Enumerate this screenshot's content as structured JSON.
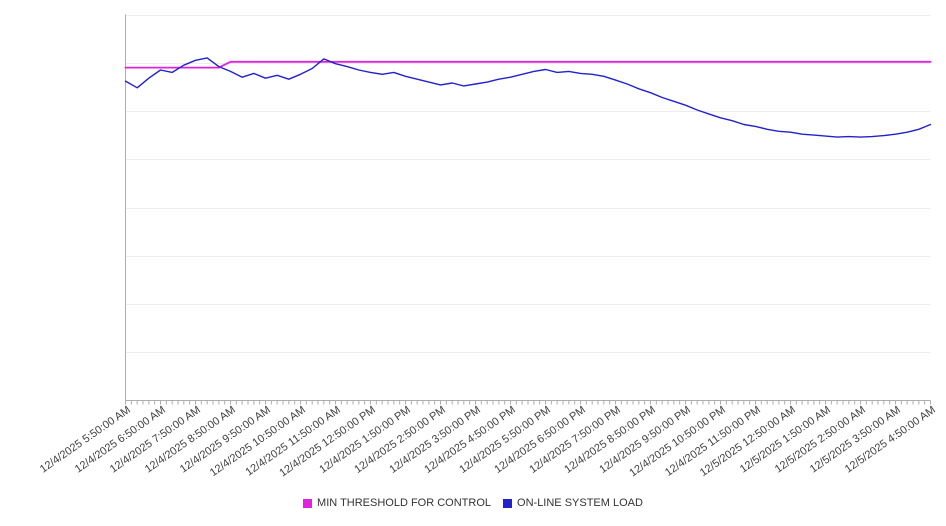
{
  "colors": {
    "background": "#ffffff",
    "gridline": "#ededed",
    "axis": "#adadad",
    "tick": "#adadad",
    "label_text": "#3f3f3f"
  },
  "chart_data": {
    "type": "line",
    "title": "",
    "xlabel": "",
    "ylabel": "",
    "ylim": [
      0,
      8
    ],
    "grid_step": 1,
    "grid": "horizontal-only",
    "legend_position": "bottom-center",
    "y_tick_labels_visible": false,
    "points_per_category": 3,
    "categories": [
      "12/4/2025 5:50:00 AM",
      "12/4/2025 6:50:00 AM",
      "12/4/2025 7:50:00 AM",
      "12/4/2025 8:50:00 AM",
      "12/4/2025 9:50:00 AM",
      "12/4/2025 10:50:00 AM",
      "12/4/2025 11:50:00 AM",
      "12/4/2025 12:50:00 PM",
      "12/4/2025 1:50:00 PM",
      "12/4/2025 2:50:00 PM",
      "12/4/2025 3:50:00 PM",
      "12/4/2025 4:50:00 PM",
      "12/4/2025 5:50:00 PM",
      "12/4/2025 6:50:00 PM",
      "12/4/2025 7:50:00 PM",
      "12/4/2025 8:50:00 PM",
      "12/4/2025 9:50:00 PM",
      "12/4/2025 10:50:00 PM",
      "12/4/2025 11:50:00 PM",
      "12/5/2025 12:50:00 AM",
      "12/5/2025 1:50:00 AM",
      "12/5/2025 2:50:00 AM",
      "12/5/2025 3:50:00 AM",
      "12/5/2025 4:50:00 AM"
    ],
    "series": [
      {
        "name": "MIN THRESHOLD FOR CONTROL",
        "color": "#e022e0",
        "stroke_width": 1.8,
        "values": [
          6.9,
          6.9,
          6.9,
          6.9,
          6.9,
          6.9,
          6.9,
          6.9,
          6.9,
          7.02,
          7.02,
          7.02,
          7.02,
          7.02,
          7.02,
          7.02,
          7.02,
          7.02,
          7.02,
          7.02,
          7.02,
          7.02,
          7.02,
          7.02,
          7.02,
          7.02,
          7.02,
          7.02,
          7.02,
          7.02,
          7.02,
          7.02,
          7.02,
          7.02,
          7.02,
          7.02,
          7.02,
          7.02,
          7.02,
          7.02,
          7.02,
          7.02,
          7.02,
          7.02,
          7.02,
          7.02,
          7.02,
          7.02,
          7.02,
          7.02,
          7.02,
          7.02,
          7.02,
          7.02,
          7.02,
          7.02,
          7.02,
          7.02,
          7.02,
          7.02,
          7.02,
          7.02,
          7.02,
          7.02,
          7.02,
          7.02,
          7.02,
          7.02,
          7.02,
          7.02
        ]
      },
      {
        "name": "ON-LINE SYSTEM LOAD",
        "color": "#2222cc",
        "stroke_width": 1.4,
        "values": [
          6.62,
          6.48,
          6.68,
          6.85,
          6.8,
          6.95,
          7.05,
          7.1,
          6.92,
          6.82,
          6.7,
          6.78,
          6.68,
          6.74,
          6.66,
          6.76,
          6.88,
          7.08,
          6.98,
          6.92,
          6.85,
          6.8,
          6.76,
          6.8,
          6.72,
          6.66,
          6.6,
          6.54,
          6.58,
          6.52,
          6.56,
          6.6,
          6.66,
          6.7,
          6.76,
          6.82,
          6.86,
          6.8,
          6.82,
          6.78,
          6.76,
          6.72,
          6.64,
          6.56,
          6.46,
          6.38,
          6.28,
          6.2,
          6.12,
          6.02,
          5.94,
          5.86,
          5.8,
          5.72,
          5.68,
          5.62,
          5.58,
          5.56,
          5.52,
          5.5,
          5.48,
          5.46,
          5.47,
          5.46,
          5.47,
          5.49,
          5.52,
          5.56,
          5.62,
          5.72
        ]
      }
    ]
  }
}
